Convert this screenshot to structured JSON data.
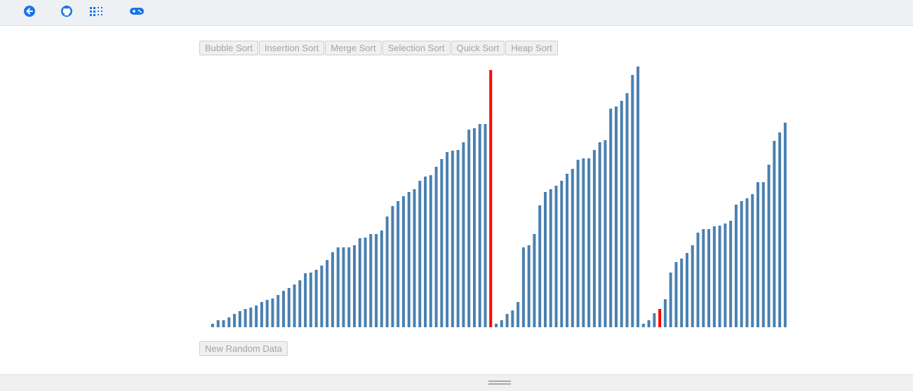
{
  "toolbar": {
    "icons": [
      "back-arrow-icon",
      "github-icon",
      "grid-dots-icon",
      "gamepad-icon"
    ],
    "icon_color": "#1a73e8"
  },
  "sort_buttons": [
    "Bubble Sort",
    "Insertion Sort",
    "Merge Sort",
    "Selection Sort",
    "Quick Sort",
    "Heap Sort"
  ],
  "new_data_label": "New Random Data",
  "chart_data": {
    "type": "bar",
    "bar_color": "#4a80b0",
    "highlight_color": "#ff0000",
    "highlighted_indices": [
      51,
      82
    ],
    "values": [
      5,
      10,
      10,
      14,
      19,
      23,
      26,
      28,
      31,
      36,
      39,
      41,
      46,
      52,
      56,
      61,
      67,
      77,
      78,
      82,
      88,
      96,
      107,
      114,
      114,
      114,
      117,
      127,
      128,
      133,
      133,
      138,
      158,
      173,
      180,
      187,
      193,
      197,
      209,
      215,
      217,
      229,
      240,
      250,
      252,
      253,
      264,
      282,
      284,
      290,
      290,
      367,
      5,
      10,
      19,
      24,
      36,
      114,
      117,
      133,
      174,
      193,
      197,
      202,
      209,
      219,
      226,
      239,
      241,
      241,
      253,
      264,
      267,
      312,
      315,
      323,
      334,
      360,
      372,
      5,
      10,
      20,
      26,
      40,
      78,
      93,
      98,
      106,
      117,
      135,
      140,
      140,
      144,
      145,
      148,
      152,
      175,
      180,
      184,
      190,
      207,
      207,
      232,
      266,
      278,
      292,
      305
    ]
  }
}
